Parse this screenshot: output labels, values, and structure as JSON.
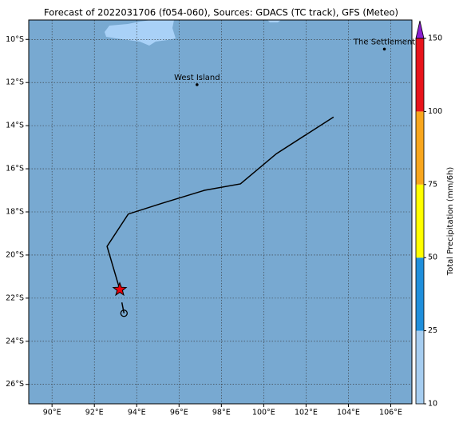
{
  "chart_data": {
    "type": "map",
    "title": "Forecast of 2022031706 (f054-060), Sources: GDACS (TC track), GFS (Meteo)",
    "xlim": [
      88.9,
      107.0
    ],
    "ylim": [
      -26.9,
      -9.1
    ],
    "xticks": [
      {
        "value": 90,
        "label": "90°E"
      },
      {
        "value": 92,
        "label": "92°E"
      },
      {
        "value": 94,
        "label": "94°E"
      },
      {
        "value": 96,
        "label": "96°E"
      },
      {
        "value": 98,
        "label": "98°E"
      },
      {
        "value": 100,
        "label": "100°E"
      },
      {
        "value": 102,
        "label": "102°E"
      },
      {
        "value": 104,
        "label": "104°E"
      },
      {
        "value": 106,
        "label": "106°E"
      }
    ],
    "yticks": [
      {
        "value": -10,
        "label": "10°S"
      },
      {
        "value": -12,
        "label": "12°S"
      },
      {
        "value": -14,
        "label": "14°S"
      },
      {
        "value": -16,
        "label": "16°S"
      },
      {
        "value": -18,
        "label": "18°S"
      },
      {
        "value": -20,
        "label": "20°S"
      },
      {
        "value": -22,
        "label": "22°S"
      },
      {
        "value": -24,
        "label": "24°S"
      },
      {
        "value": -26,
        "label": "26°S"
      }
    ],
    "grid": true,
    "track": {
      "color": "#000000",
      "x": [
        103.3,
        100.6,
        98.9,
        97.2,
        95.2,
        93.6,
        92.6,
        93.2,
        null,
        93.3,
        93.4
      ],
      "y": [
        -13.6,
        -15.3,
        -16.7,
        -17.0,
        -17.6,
        -18.1,
        -19.6,
        -21.6,
        null,
        -22.2,
        -22.7
      ]
    },
    "places": [
      {
        "name": "West Island",
        "x": 96.85,
        "y": -12.1
      },
      {
        "name": "The Settlement",
        "x": 105.7,
        "y": -10.45
      }
    ],
    "colorbar": {
      "label": "Total Precipitation (mm/6h)",
      "bins": [
        10,
        25,
        50,
        75,
        100,
        150
      ],
      "colors": [
        "#a6cdf0",
        "#1f8fdc",
        "#ffff00",
        "#f8a61d",
        "#e8141b"
      ],
      "extend_color": "#8b1fd0"
    }
  }
}
